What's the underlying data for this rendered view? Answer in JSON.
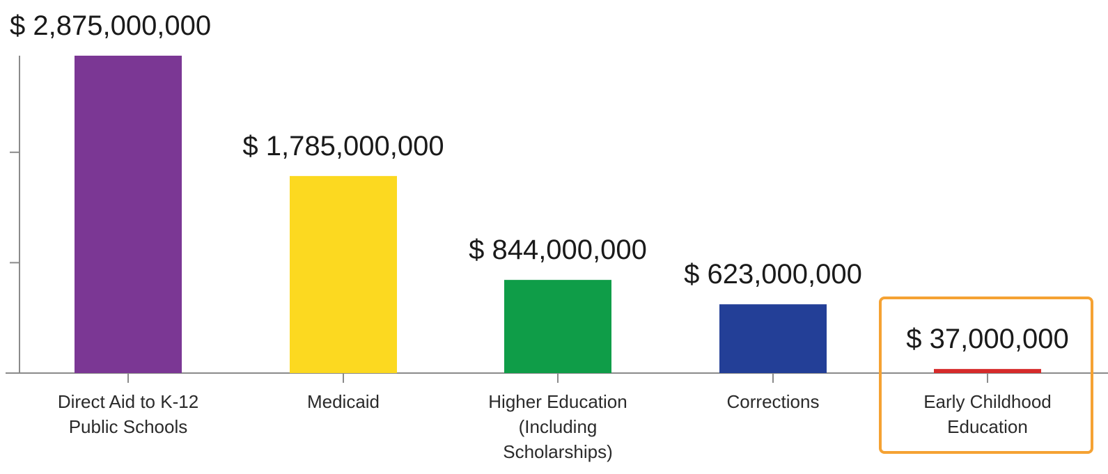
{
  "chart_data": {
    "type": "bar",
    "categories": [
      [
        "Direct Aid to K-12",
        "Public Schools"
      ],
      [
        "Medicaid"
      ],
      [
        "Higher Education",
        "(Including",
        "Scholarships)"
      ],
      [
        "Corrections"
      ],
      [
        "Early Childhood",
        "Education"
      ]
    ],
    "values": [
      2875000000,
      1785000000,
      844000000,
      623000000,
      37000000
    ],
    "value_labels": [
      "$ 2,875,000,000",
      "$ 1,785,000,000",
      "$ 844,000,000",
      "$ 623,000,000",
      "$ 37,000,000"
    ],
    "colors": [
      "#7b3794",
      "#fcd920",
      "#0f9d48",
      "#233f97",
      "#d62a2a"
    ],
    "highlight": {
      "index": 4,
      "color": "#f5a233"
    },
    "title": "",
    "xlabel": "",
    "ylabel": "",
    "ylim": [
      0,
      2875000000
    ],
    "grid": false
  }
}
